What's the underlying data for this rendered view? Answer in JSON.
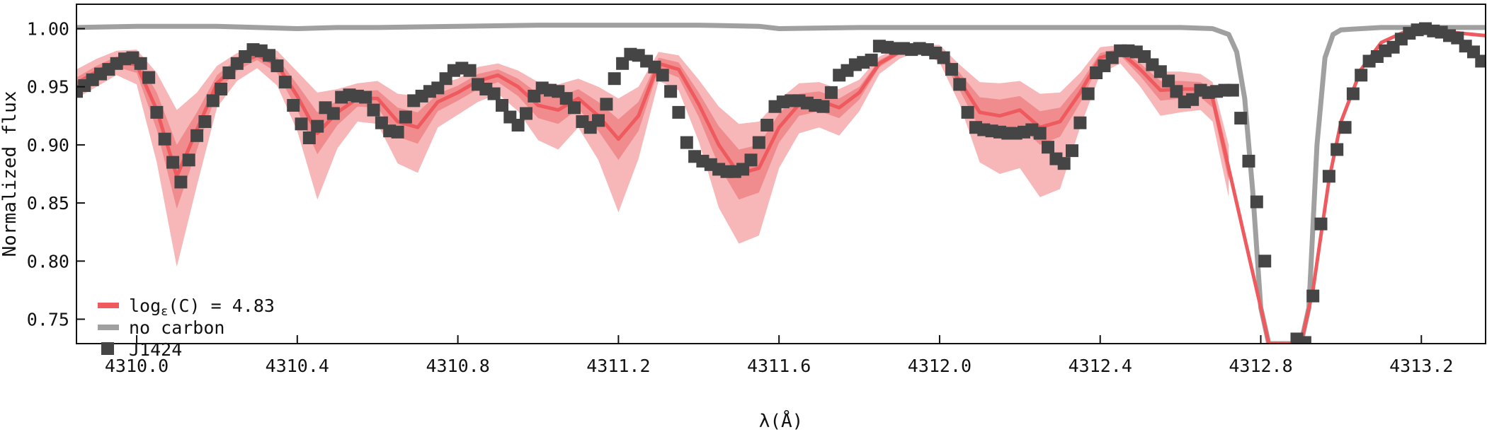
{
  "chart_data": {
    "type": "line",
    "title": "",
    "xlabel": "λ(Å)",
    "ylabel": "Normalized flux",
    "xlim": [
      4309.85,
      4313.36
    ],
    "ylim": [
      0.729,
      1.021
    ],
    "grid": false,
    "legend_position": "bottom-left",
    "x_ticks": [
      {
        "value": 4310.0,
        "label": "4310.0"
      },
      {
        "value": 4310.4,
        "label": "4310.4"
      },
      {
        "value": 4310.8,
        "label": "4310.8"
      },
      {
        "value": 4311.2,
        "label": "4311.2"
      },
      {
        "value": 4311.6,
        "label": "4311.6"
      },
      {
        "value": 4312.0,
        "label": "4312.0"
      },
      {
        "value": 4312.4,
        "label": "4312.4"
      },
      {
        "value": 4312.8,
        "label": "4312.8"
      },
      {
        "value": 4313.2,
        "label": "4313.2"
      }
    ],
    "y_ticks": [
      {
        "value": 0.75,
        "label": "0.75"
      },
      {
        "value": 0.8,
        "label": "0.80"
      },
      {
        "value": 0.85,
        "label": "0.85"
      },
      {
        "value": 0.9,
        "label": "0.90"
      },
      {
        "value": 0.95,
        "label": "0.95"
      },
      {
        "value": 1.0,
        "label": "1.00"
      }
    ],
    "colors": {
      "model": "#ee5a5e",
      "band_inner": "#f08c8e",
      "band_outer": "#f7b6b8",
      "no_carbon": "#a0a0a0",
      "observed": "#454545"
    },
    "legend": [
      {
        "series": "model",
        "label_main": "log",
        "label_sub": "ε",
        "label_rest": "(C) = 4.83"
      },
      {
        "series": "no_carbon",
        "label": "no carbon"
      },
      {
        "series": "observed",
        "label": "J1424"
      }
    ],
    "series": {
      "model": {
        "x": [
          4309.85,
          4309.9,
          4309.95,
          4310.0,
          4310.05,
          4310.1,
          4310.15,
          4310.2,
          4310.25,
          4310.3,
          4310.35,
          4310.4,
          4310.45,
          4310.5,
          4310.55,
          4310.6,
          4310.65,
          4310.7,
          4310.75,
          4310.8,
          4310.85,
          4310.9,
          4310.95,
          4311.0,
          4311.05,
          4311.1,
          4311.15,
          4311.2,
          4311.25,
          4311.3,
          4311.35,
          4311.4,
          4311.45,
          4311.5,
          4311.55,
          4311.6,
          4311.65,
          4311.7,
          4311.75,
          4311.8,
          4311.85,
          4311.9,
          4311.95,
          4312.0,
          4312.05,
          4312.1,
          4312.15,
          4312.2,
          4312.25,
          4312.3,
          4312.35,
          4312.4,
          4312.45,
          4312.5,
          4312.55,
          4312.6,
          4312.65,
          4312.68,
          4312.72,
          4312.76,
          4312.8,
          4312.82,
          4312.84,
          4312.86,
          4312.88,
          4312.9,
          4312.93,
          4312.97,
          4313.0,
          4313.05,
          4313.1,
          4313.15,
          4313.2,
          4313.25,
          4313.3,
          4313.36
        ],
        "y": [
          0.953,
          0.963,
          0.972,
          0.969,
          0.93,
          0.873,
          0.913,
          0.953,
          0.969,
          0.977,
          0.969,
          0.942,
          0.91,
          0.928,
          0.94,
          0.94,
          0.92,
          0.915,
          0.937,
          0.945,
          0.955,
          0.96,
          0.95,
          0.934,
          0.93,
          0.94,
          0.925,
          0.905,
          0.925,
          0.97,
          0.965,
          0.935,
          0.9,
          0.875,
          0.88,
          0.915,
          0.935,
          0.938,
          0.932,
          0.945,
          0.97,
          0.98,
          0.984,
          0.98,
          0.955,
          0.928,
          0.925,
          0.93,
          0.915,
          0.92,
          0.945,
          0.975,
          0.98,
          0.965,
          0.947,
          0.948,
          0.948,
          0.94,
          0.88,
          0.82,
          0.76,
          0.729,
          0.729,
          0.729,
          0.729,
          0.729,
          0.775,
          0.87,
          0.92,
          0.965,
          0.988,
          0.996,
          1.0,
          0.998,
          0.996,
          0.994
        ]
      },
      "band_inner": {
        "x": [
          4309.85,
          4309.9,
          4309.95,
          4310.0,
          4310.05,
          4310.1,
          4310.15,
          4310.2,
          4310.25,
          4310.3,
          4310.35,
          4310.4,
          4310.45,
          4310.5,
          4310.55,
          4310.6,
          4310.65,
          4310.7,
          4310.75,
          4310.8,
          4310.85,
          4310.9,
          4310.95,
          4311.0,
          4311.05,
          4311.1,
          4311.15,
          4311.2,
          4311.25,
          4311.3,
          4311.35,
          4311.4,
          4311.45,
          4311.5,
          4311.55,
          4311.6,
          4311.65,
          4311.7,
          4311.75,
          4311.8,
          4311.85,
          4311.9,
          4311.95,
          4312.0,
          4312.05,
          4312.1,
          4312.15,
          4312.2,
          4312.25,
          4312.3,
          4312.35,
          4312.4,
          4312.45,
          4312.5,
          4312.55,
          4312.6,
          4312.65,
          4312.68,
          4312.72
        ],
        "upper": [
          0.958,
          0.968,
          0.976,
          0.975,
          0.945,
          0.9,
          0.928,
          0.96,
          0.974,
          0.981,
          0.975,
          0.952,
          0.928,
          0.938,
          0.946,
          0.947,
          0.932,
          0.928,
          0.944,
          0.951,
          0.961,
          0.965,
          0.957,
          0.944,
          0.941,
          0.948,
          0.937,
          0.922,
          0.937,
          0.975,
          0.971,
          0.945,
          0.916,
          0.896,
          0.9,
          0.927,
          0.944,
          0.946,
          0.94,
          0.95,
          0.973,
          0.982,
          0.985,
          0.983,
          0.962,
          0.941,
          0.939,
          0.942,
          0.929,
          0.932,
          0.953,
          0.979,
          0.983,
          0.97,
          0.955,
          0.955,
          0.954,
          0.947,
          0.89
        ],
        "lower": [
          0.948,
          0.958,
          0.967,
          0.962,
          0.913,
          0.845,
          0.896,
          0.945,
          0.964,
          0.973,
          0.962,
          0.93,
          0.892,
          0.917,
          0.933,
          0.932,
          0.907,
          0.901,
          0.929,
          0.938,
          0.948,
          0.954,
          0.942,
          0.923,
          0.918,
          0.931,
          0.912,
          0.887,
          0.912,
          0.965,
          0.958,
          0.924,
          0.882,
          0.853,
          0.859,
          0.902,
          0.925,
          0.929,
          0.923,
          0.939,
          0.967,
          0.978,
          0.983,
          0.977,
          0.947,
          0.914,
          0.91,
          0.917,
          0.9,
          0.907,
          0.936,
          0.971,
          0.977,
          0.959,
          0.938,
          0.94,
          0.941,
          0.932,
          0.869
        ]
      },
      "band_outer": {
        "x": [
          4309.85,
          4309.9,
          4309.95,
          4310.0,
          4310.05,
          4310.1,
          4310.15,
          4310.2,
          4310.25,
          4310.3,
          4310.35,
          4310.4,
          4310.45,
          4310.5,
          4310.55,
          4310.6,
          4310.65,
          4310.7,
          4310.75,
          4310.8,
          4310.85,
          4310.9,
          4310.95,
          4311.0,
          4311.05,
          4311.1,
          4311.15,
          4311.2,
          4311.25,
          4311.3,
          4311.35,
          4311.4,
          4311.45,
          4311.5,
          4311.55,
          4311.6,
          4311.65,
          4311.7,
          4311.75,
          4311.8,
          4311.85,
          4311.9,
          4311.95,
          4312.0,
          4312.05,
          4312.1,
          4312.15,
          4312.2,
          4312.25,
          4312.3,
          4312.35,
          4312.4,
          4312.45,
          4312.5,
          4312.55,
          4312.6,
          4312.65,
          4312.68,
          4312.72
        ],
        "upper": [
          0.965,
          0.974,
          0.981,
          0.982,
          0.962,
          0.93,
          0.945,
          0.968,
          0.979,
          0.985,
          0.981,
          0.963,
          0.945,
          0.948,
          0.953,
          0.955,
          0.944,
          0.942,
          0.952,
          0.957,
          0.967,
          0.97,
          0.964,
          0.954,
          0.952,
          0.957,
          0.95,
          0.94,
          0.95,
          0.98,
          0.977,
          0.956,
          0.933,
          0.918,
          0.92,
          0.939,
          0.953,
          0.954,
          0.948,
          0.956,
          0.976,
          0.984,
          0.986,
          0.986,
          0.969,
          0.954,
          0.953,
          0.955,
          0.944,
          0.945,
          0.962,
          0.984,
          0.986,
          0.975,
          0.963,
          0.963,
          0.961,
          0.954,
          0.9
        ],
        "lower": [
          0.94,
          0.95,
          0.96,
          0.952,
          0.885,
          0.795,
          0.865,
          0.932,
          0.955,
          0.966,
          0.951,
          0.912,
          0.853,
          0.897,
          0.92,
          0.918,
          0.884,
          0.876,
          0.915,
          0.926,
          0.937,
          0.944,
          0.929,
          0.904,
          0.896,
          0.915,
          0.887,
          0.842,
          0.888,
          0.955,
          0.947,
          0.903,
          0.846,
          0.815,
          0.822,
          0.88,
          0.91,
          0.915,
          0.908,
          0.929,
          0.961,
          0.974,
          0.981,
          0.971,
          0.935,
          0.885,
          0.875,
          0.88,
          0.855,
          0.862,
          0.915,
          0.961,
          0.97,
          0.95,
          0.925,
          0.928,
          0.93,
          0.92,
          0.855
        ]
      },
      "no_carbon": {
        "x": [
          4309.85,
          4310.0,
          4310.2,
          4310.4,
          4310.5,
          4310.6,
          4310.8,
          4311.0,
          4311.2,
          4311.4,
          4311.55,
          4311.6,
          4311.8,
          4312.0,
          4312.2,
          4312.4,
          4312.6,
          4312.68,
          4312.72,
          4312.74,
          4312.76,
          4312.78,
          4312.8,
          4312.82,
          4312.84,
          4312.86,
          4312.88,
          4312.9,
          4312.92,
          4312.94,
          4312.96,
          4312.98,
          4313.0,
          4313.1,
          4313.2,
          4313.36
        ],
        "y": [
          1.001,
          1.002,
          1.002,
          1.0,
          1.001,
          1.001,
          1.002,
          1.003,
          1.003,
          1.003,
          1.002,
          1.0,
          1.001,
          1.001,
          1.001,
          1.001,
          1.001,
          1.0,
          0.995,
          0.98,
          0.94,
          0.86,
          0.76,
          0.729,
          0.729,
          0.729,
          0.729,
          0.729,
          0.76,
          0.9,
          0.975,
          0.995,
          0.999,
          1.001,
          1.001,
          1.001
        ]
      },
      "observed": {
        "x": [
          4309.85,
          4309.87,
          4309.89,
          4309.91,
          4309.93,
          4309.95,
          4309.97,
          4309.99,
          4310.01,
          4310.03,
          4310.05,
          4310.07,
          4310.09,
          4310.11,
          4310.13,
          4310.15,
          4310.17,
          4310.19,
          4310.21,
          4310.23,
          4310.25,
          4310.27,
          4310.29,
          4310.31,
          4310.33,
          4310.35,
          4310.37,
          4310.39,
          4310.41,
          4310.43,
          4310.45,
          4310.47,
          4310.49,
          4310.51,
          4310.53,
          4310.55,
          4310.57,
          4310.59,
          4310.61,
          4310.63,
          4310.65,
          4310.67,
          4310.69,
          4310.71,
          4310.73,
          4310.75,
          4310.77,
          4310.79,
          4310.81,
          4310.83,
          4310.85,
          4310.87,
          4310.89,
          4310.91,
          4310.93,
          4310.95,
          4310.97,
          4310.99,
          4311.01,
          4311.03,
          4311.05,
          4311.07,
          4311.09,
          4311.11,
          4311.13,
          4311.15,
          4311.17,
          4311.19,
          4311.21,
          4311.23,
          4311.25,
          4311.27,
          4311.29,
          4311.31,
          4311.33,
          4311.35,
          4311.37,
          4311.39,
          4311.41,
          4311.43,
          4311.45,
          4311.47,
          4311.49,
          4311.51,
          4311.53,
          4311.55,
          4311.57,
          4311.59,
          4311.61,
          4311.63,
          4311.65,
          4311.67,
          4311.69,
          4311.71,
          4311.73,
          4311.75,
          4311.77,
          4311.79,
          4311.81,
          4311.83,
          4311.85,
          4311.87,
          4311.89,
          4311.91,
          4311.93,
          4311.95,
          4311.97,
          4311.99,
          4312.01,
          4312.03,
          4312.05,
          4312.07,
          4312.09,
          4312.11,
          4312.13,
          4312.15,
          4312.17,
          4312.19,
          4312.21,
          4312.23,
          4312.25,
          4312.27,
          4312.29,
          4312.31,
          4312.33,
          4312.35,
          4312.37,
          4312.39,
          4312.41,
          4312.43,
          4312.45,
          4312.47,
          4312.49,
          4312.51,
          4312.53,
          4312.55,
          4312.57,
          4312.59,
          4312.61,
          4312.63,
          4312.65,
          4312.67,
          4312.69,
          4312.71,
          4312.73,
          4312.75,
          4312.77,
          4312.79,
          4312.81,
          4312.89,
          4312.91,
          4312.93,
          4312.95,
          4312.97,
          4312.99,
          4313.01,
          4313.03,
          4313.05,
          4313.07,
          4313.09,
          4313.11,
          4313.13,
          4313.15,
          4313.17,
          4313.19,
          4313.21,
          4313.23,
          4313.25,
          4313.27,
          4313.29,
          4313.31,
          4313.33,
          4313.35
        ],
        "y": [
          0.946,
          0.951,
          0.956,
          0.961,
          0.965,
          0.97,
          0.974,
          0.975,
          0.97,
          0.958,
          0.928,
          0.905,
          0.885,
          0.868,
          0.887,
          0.908,
          0.92,
          0.938,
          0.948,
          0.962,
          0.97,
          0.976,
          0.982,
          0.981,
          0.977,
          0.968,
          0.954,
          0.934,
          0.918,
          0.906,
          0.916,
          0.932,
          0.927,
          0.941,
          0.943,
          0.942,
          0.941,
          0.93,
          0.919,
          0.912,
          0.911,
          0.924,
          0.938,
          0.942,
          0.946,
          0.949,
          0.957,
          0.964,
          0.966,
          0.964,
          0.952,
          0.948,
          0.944,
          0.934,
          0.924,
          0.917,
          0.927,
          0.942,
          0.949,
          0.947,
          0.946,
          0.94,
          0.932,
          0.92,
          0.915,
          0.921,
          0.935,
          0.957,
          0.97,
          0.978,
          0.977,
          0.972,
          0.967,
          0.96,
          0.946,
          0.928,
          0.902,
          0.89,
          0.886,
          0.883,
          0.879,
          0.877,
          0.877,
          0.879,
          0.887,
          0.902,
          0.917,
          0.933,
          0.937,
          0.938,
          0.938,
          0.936,
          0.934,
          0.933,
          0.945,
          0.96,
          0.964,
          0.969,
          0.971,
          0.973,
          0.985,
          0.984,
          0.983,
          0.983,
          0.982,
          0.983,
          0.982,
          0.979,
          0.975,
          0.965,
          0.952,
          0.928,
          0.915,
          0.913,
          0.912,
          0.911,
          0.91,
          0.91,
          0.911,
          0.913,
          0.91,
          0.898,
          0.888,
          0.884,
          0.895,
          0.919,
          0.944,
          0.962,
          0.968,
          0.975,
          0.981,
          0.981,
          0.98,
          0.976,
          0.969,
          0.963,
          0.955,
          0.946,
          0.937,
          0.939,
          0.947,
          0.945,
          0.946,
          0.947,
          0.947,
          0.923,
          0.886,
          0.851,
          0.8,
          0.733,
          0.73,
          0.77,
          0.832,
          0.873,
          0.896,
          0.915,
          0.944,
          0.96,
          0.972,
          0.976,
          0.981,
          0.984,
          0.991,
          0.996,
          0.999,
          1.0,
          0.998,
          0.997,
          0.994,
          0.992,
          0.985,
          0.98,
          0.972
        ]
      }
    }
  }
}
